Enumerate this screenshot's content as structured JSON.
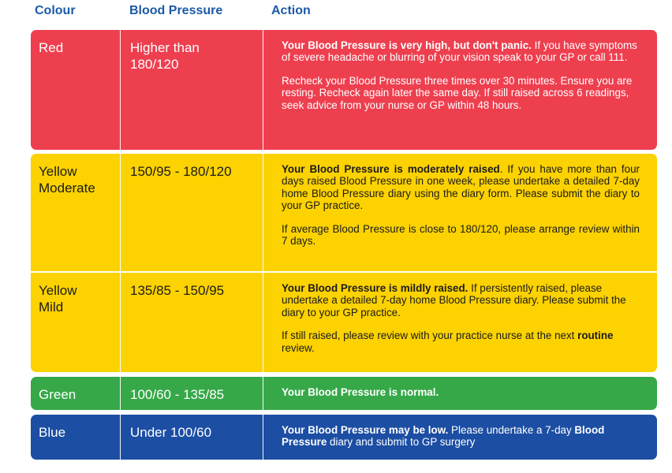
{
  "header": {
    "colour": "Colour",
    "blood_pressure": "Blood Pressure",
    "action": "Action"
  },
  "rows": [
    {
      "colour_name": "Red",
      "range": "Higher than 180/120",
      "action": {
        "p1_bold": "Your Blood Pressure is very high, but don't panic.",
        "p1_text": " If you have symptoms of severe headache or blurring of your vision speak to your GP or call 111.",
        "p2_text": "Recheck your Blood Pressure three times over 30 minutes. Ensure you are resting. Recheck again later the same day. If still raised across 6 readings, seek advice from your nurse or GP within 48 hours."
      },
      "color": "#ee3f4f"
    },
    {
      "colour_name": "Yellow Moderate",
      "range": "150/95 - 180/120",
      "action": {
        "p1_bold": "Your Blood Pressure is moderately raised",
        "p1_text": ". If you have more than four days raised Blood Pressure in one week, please undertake a detailed 7-day home Blood Pressure diary using the diary form. Please submit the diary to your GP practice.",
        "p2_text": "If average Blood Pressure is close to 180/120, please arrange review within 7 days."
      },
      "color": "#fcd200"
    },
    {
      "colour_name": "Yellow Mild",
      "range": "135/85 - 150/95",
      "action": {
        "p1_bold": "Your Blood Pressure is mildly raised.",
        "p1_text": " If persistently raised, please undertake a detailed 7-day home Blood Pressure diary. Please submit the diary to your GP practice.",
        "p2_text": "If still raised, please review with your practice nurse at the next ",
        "p2_bold": "routine",
        "p2_tail": " review."
      },
      "color": "#fcd200"
    },
    {
      "colour_name": "Green",
      "range": "100/60 - 135/85",
      "action": {
        "p1_bold": "Your Blood Pressure is normal."
      },
      "color": "#36a848"
    },
    {
      "colour_name": "Blue",
      "range": "Under 100/60",
      "action": {
        "p1_bold": "Your Blood Pressure may be low.",
        "p1_text": " Please undertake a 7-day ",
        "p1_bold2": "Blood Pressure",
        "p1_tail": " diary and submit to GP surgery"
      },
      "color": "#1c4ea3"
    }
  ]
}
